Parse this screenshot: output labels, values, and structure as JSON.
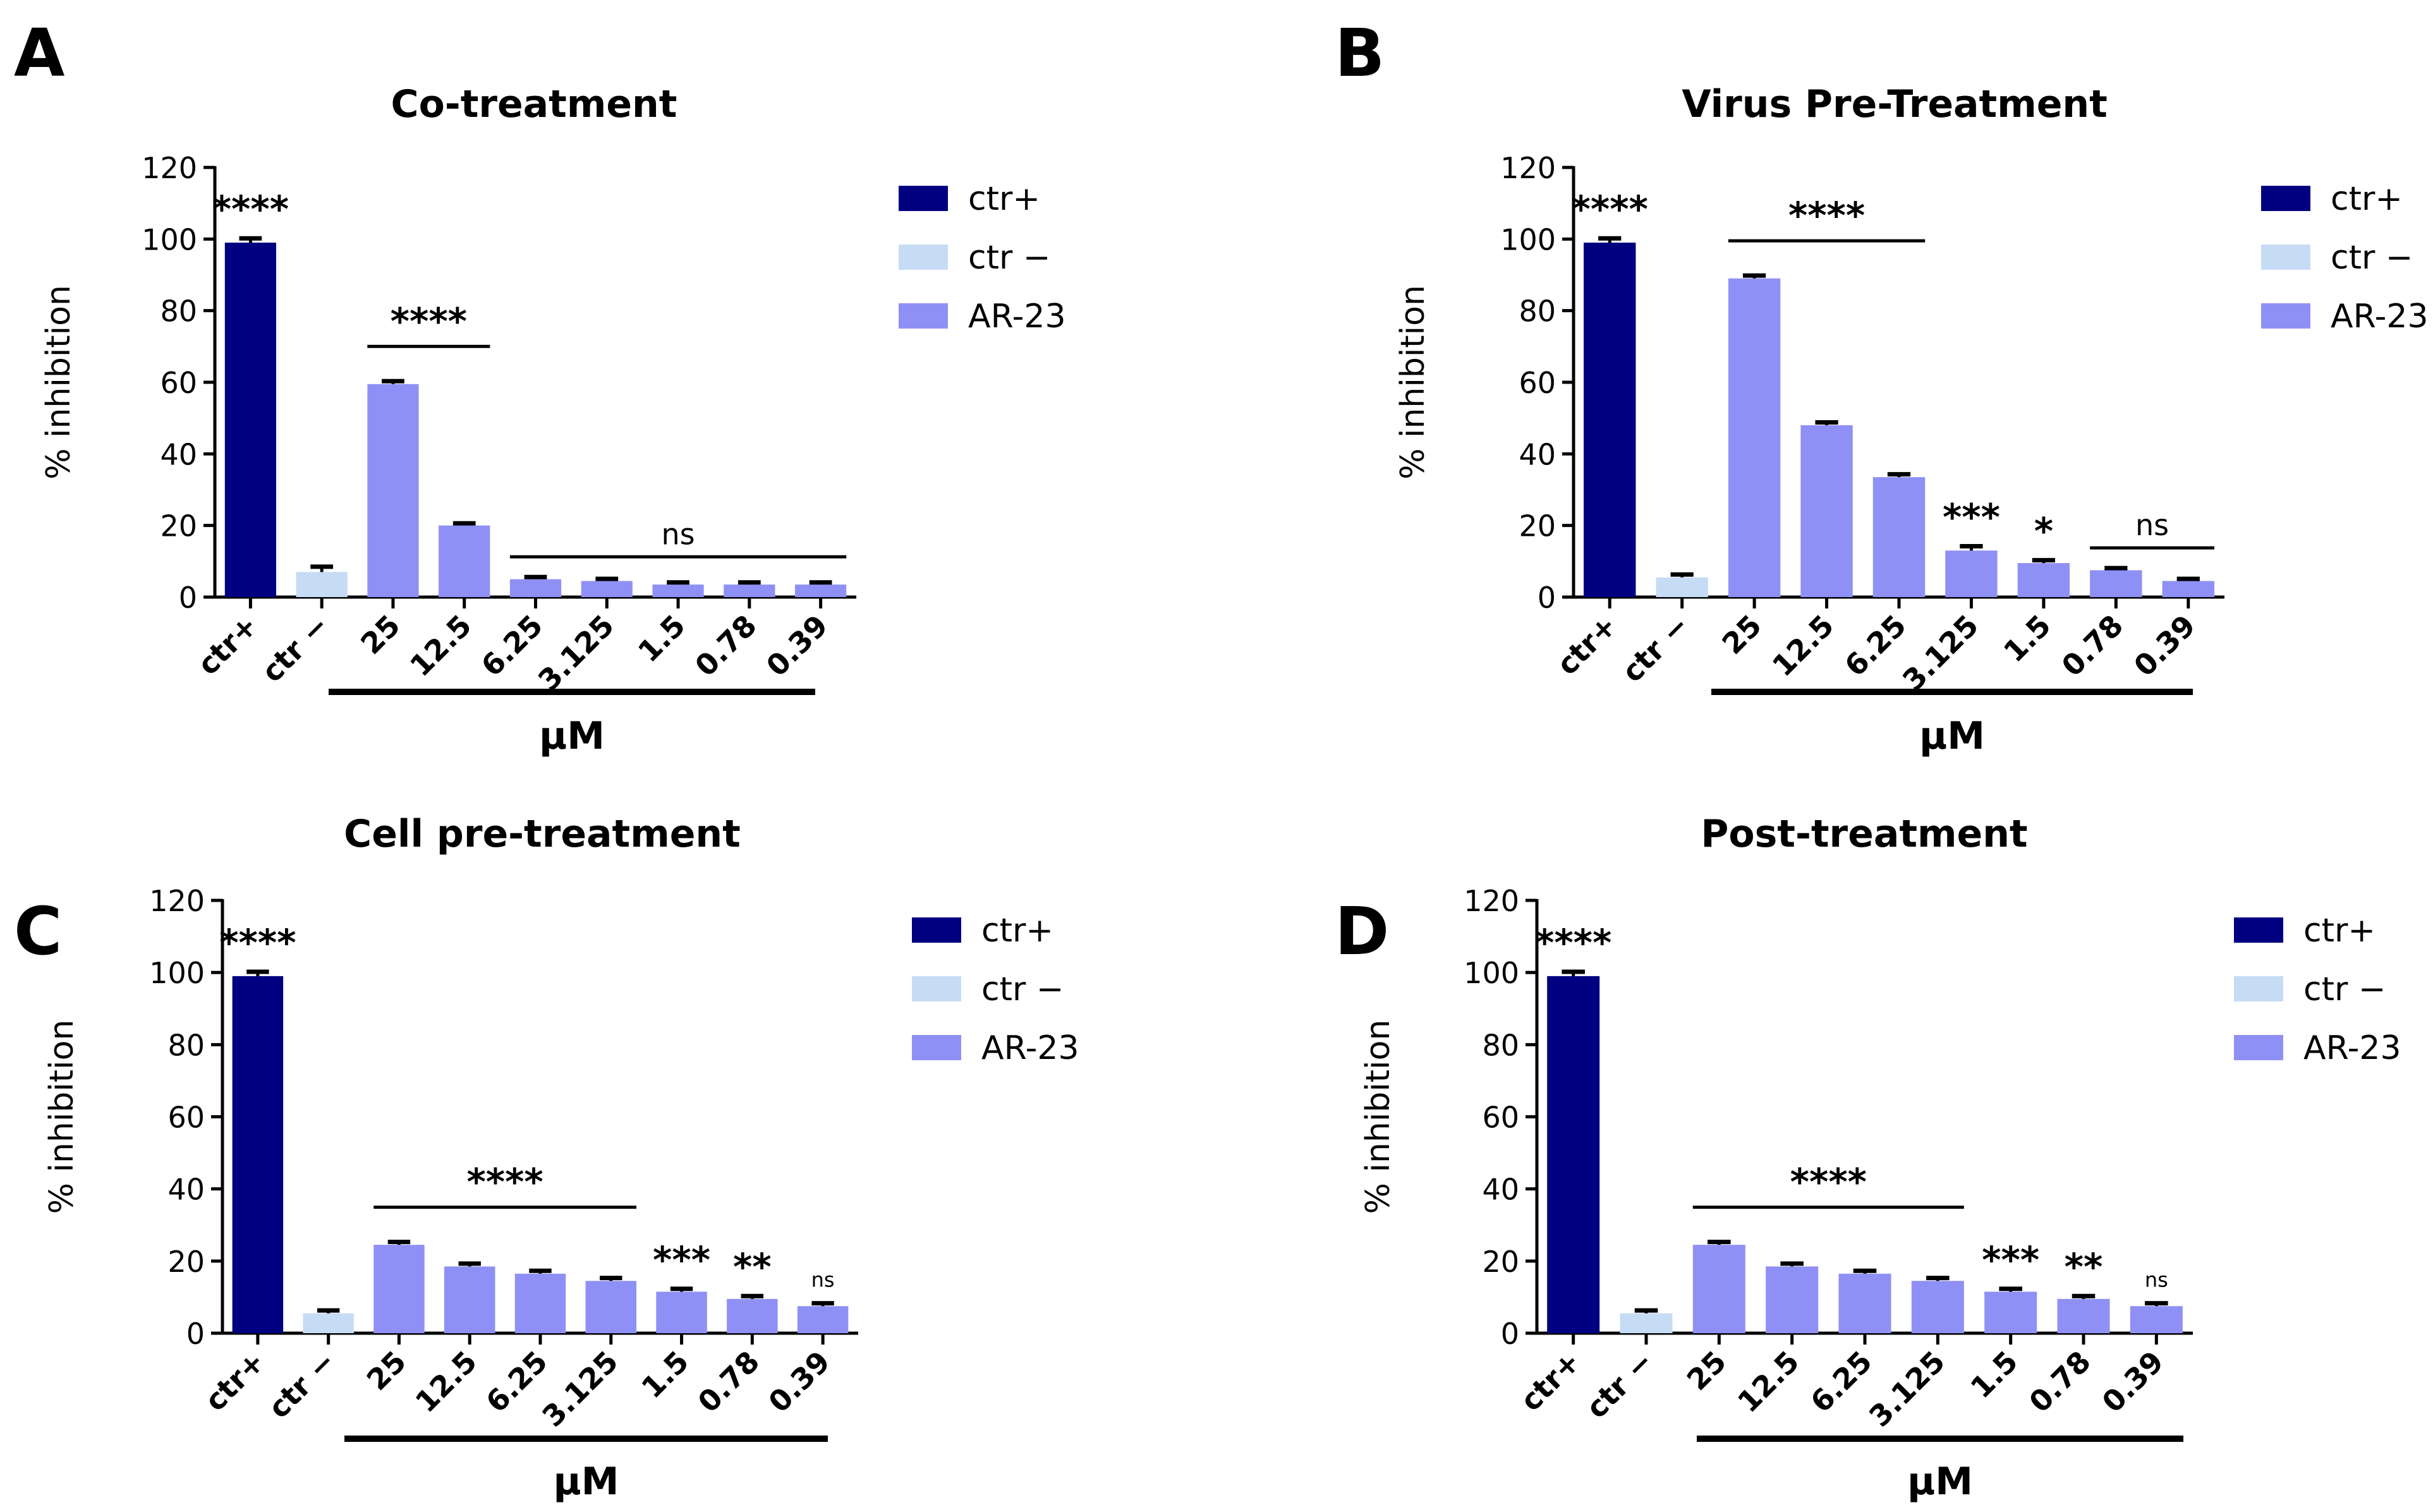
{
  "figure": {
    "colors": {
      "ctr_pos": "#000080",
      "ctr_neg": "#c6dcf5",
      "ar23": "#8f90f5",
      "axis": "#000000"
    },
    "legend": [
      {
        "label": "ctr+",
        "color": "#000080"
      },
      {
        "label": "ctr −",
        "color": "#c6dcf5"
      },
      {
        "label": "AR-23",
        "color": "#8f90f5"
      }
    ],
    "ylabel": "% inhibition",
    "xlabel": "µM",
    "yticks": [
      0,
      20,
      40,
      60,
      80,
      100,
      120
    ]
  },
  "chart_data": [
    {
      "panel": "A",
      "type": "bar",
      "title": "Co-treatment",
      "xlabel": "µM",
      "ylabel": "% inhibition",
      "ylim": [
        0,
        120
      ],
      "categories": [
        "ctr+",
        "ctr −",
        "25",
        "12.5",
        "6.25",
        "3.125",
        "1.5",
        "0.78",
        "0.39"
      ],
      "values": [
        99,
        7,
        59.5,
        20,
        5,
        4.5,
        3.5,
        3.5,
        3.5
      ],
      "errors": [
        1.2,
        1.5,
        0.8,
        0.6,
        0.6,
        0.6,
        0.6,
        0.6,
        0.6
      ],
      "series_of_bar": [
        "ctr+",
        "ctr −",
        "AR-23",
        "AR-23",
        "AR-23",
        "AR-23",
        "AR-23",
        "AR-23",
        "AR-23"
      ],
      "annotations": [
        {
          "text": "****",
          "category": "ctr+"
        },
        {
          "text": "****",
          "range": [
            "25",
            "12.5"
          ],
          "line": true
        },
        {
          "text": "ns",
          "range": [
            "6.25",
            "0.39"
          ],
          "line": true
        }
      ]
    },
    {
      "panel": "B",
      "type": "bar",
      "title": "Virus Pre-Treatment",
      "xlabel": "µM",
      "ylabel": "% inhibition",
      "ylim": [
        0,
        120
      ],
      "categories": [
        "ctr+",
        "ctr −",
        "25",
        "12.5",
        "6.25",
        "3.125",
        "1.5",
        "0.78",
        "0.39"
      ],
      "values": [
        99,
        5.5,
        89,
        48,
        33.5,
        13,
        9.5,
        7.5,
        4.5
      ],
      "errors": [
        1.2,
        0.8,
        0.8,
        0.8,
        0.8,
        1.2,
        0.8,
        0.6,
        0.6
      ],
      "series_of_bar": [
        "ctr+",
        "ctr −",
        "AR-23",
        "AR-23",
        "AR-23",
        "AR-23",
        "AR-23",
        "AR-23",
        "AR-23"
      ],
      "annotations": [
        {
          "text": "****",
          "category": "ctr+"
        },
        {
          "text": "****",
          "range": [
            "25",
            "6.25"
          ],
          "line": true
        },
        {
          "text": "***",
          "category": "3.125"
        },
        {
          "text": "*",
          "category": "1.5"
        },
        {
          "text": "ns",
          "range": [
            "0.78",
            "0.39"
          ],
          "line": true
        }
      ]
    },
    {
      "panel": "C",
      "type": "bar",
      "title": "Cell pre-treatment",
      "xlabel": "µM",
      "ylabel": "% inhibition",
      "ylim": [
        0,
        120
      ],
      "categories": [
        "ctr+",
        "ctr −",
        "25",
        "12.5",
        "6.25",
        "3.125",
        "1.5",
        "0.78",
        "0.39"
      ],
      "values": [
        99,
        5.5,
        24.5,
        18.5,
        16.5,
        14.5,
        11.5,
        9.5,
        7.5
      ],
      "errors": [
        1.2,
        0.8,
        0.8,
        0.8,
        0.8,
        0.8,
        0.8,
        0.8,
        0.8
      ],
      "series_of_bar": [
        "ctr+",
        "ctr −",
        "AR-23",
        "AR-23",
        "AR-23",
        "AR-23",
        "AR-23",
        "AR-23",
        "AR-23"
      ],
      "annotations": [
        {
          "text": "****",
          "category": "ctr+"
        },
        {
          "text": "****",
          "range": [
            "25",
            "3.125"
          ],
          "line": true
        },
        {
          "text": "***",
          "category": "1.5"
        },
        {
          "text": "**",
          "category": "0.78"
        },
        {
          "text": "ns",
          "category": "0.39",
          "small": true
        }
      ]
    },
    {
      "panel": "D",
      "type": "bar",
      "title": "Post-treatment",
      "xlabel": "µM",
      "ylabel": "% inhibition",
      "ylim": [
        0,
        120
      ],
      "categories": [
        "ctr+",
        "ctr −",
        "25",
        "12.5",
        "6.25",
        "3.125",
        "1.5",
        "0.78",
        "0.39"
      ],
      "values": [
        99,
        5.5,
        24.5,
        18.5,
        16.5,
        14.5,
        11.5,
        9.5,
        7.5
      ],
      "errors": [
        1.2,
        0.8,
        0.8,
        0.8,
        0.8,
        0.8,
        0.8,
        0.8,
        0.8
      ],
      "series_of_bar": [
        "ctr+",
        "ctr −",
        "AR-23",
        "AR-23",
        "AR-23",
        "AR-23",
        "AR-23",
        "AR-23",
        "AR-23"
      ],
      "annotations": [
        {
          "text": "****",
          "category": "ctr+"
        },
        {
          "text": "****",
          "range": [
            "25",
            "3.125"
          ],
          "line": true
        },
        {
          "text": "***",
          "category": "1.5"
        },
        {
          "text": "**",
          "category": "0.78"
        },
        {
          "text": "ns",
          "category": "0.39",
          "small": true
        }
      ]
    }
  ]
}
